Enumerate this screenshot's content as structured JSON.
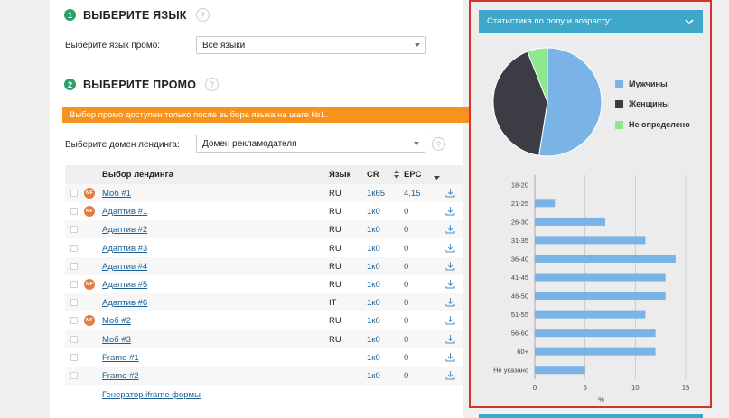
{
  "step1": {
    "num": "1",
    "title": "ВЫБЕРИТЕ ЯЗЫК",
    "help": "?",
    "lang_label": "Выберите язык промо:",
    "lang_value": "Все языки"
  },
  "step2": {
    "num": "2",
    "title": "ВЫБЕРИТЕ ПРОМО",
    "help": "?",
    "warning": "Выбор промо доступен только после выбора языка на шаге №1.",
    "domain_label": "Выберите домен лендинга:",
    "domain_value": "Домен рекламодателя"
  },
  "table": {
    "headers": {
      "landing": "Выбор лендинга",
      "lang": "Язык",
      "cr": "CR",
      "epc": "EPC"
    },
    "rows": [
      {
        "badge": "MF",
        "name": "Моб #1",
        "lang": "RU",
        "cr": "1к65",
        "epc": "4.15"
      },
      {
        "badge": "MF",
        "name": "Адаптив #1",
        "lang": "RU",
        "cr": "1к0",
        "epc": "0"
      },
      {
        "badge": "",
        "name": "Адаптив #2",
        "lang": "RU",
        "cr": "1к0",
        "epc": "0"
      },
      {
        "badge": "",
        "name": "Адаптив #3",
        "lang": "RU",
        "cr": "1к0",
        "epc": "0"
      },
      {
        "badge": "",
        "name": "Адаптив #4",
        "lang": "RU",
        "cr": "1к0",
        "epc": "0"
      },
      {
        "badge": "MF",
        "name": "Адаптив #5",
        "lang": "RU",
        "cr": "1к0",
        "epc": "0"
      },
      {
        "badge": "",
        "name": "Адаптив #6",
        "lang": "IT",
        "cr": "1к0",
        "epc": "0"
      },
      {
        "badge": "MF",
        "name": "Моб #2",
        "lang": "RU",
        "cr": "1к0",
        "epc": "0"
      },
      {
        "badge": "",
        "name": "Моб #3",
        "lang": "RU",
        "cr": "1к0",
        "epc": "0"
      },
      {
        "badge": "",
        "name": "Frame #1",
        "lang": "",
        "cr": "1к0",
        "epc": "0"
      },
      {
        "badge": "",
        "name": "Frame #2",
        "lang": "",
        "cr": "1к0",
        "epc": "0"
      }
    ],
    "iframe_link": "Генератор iframe формы"
  },
  "stats_panel": {
    "title": "Статистика по полу и возрасту:"
  },
  "colors": {
    "accent": "#3fa7c9",
    "warning": "#f7931d",
    "male": "#7ab3e6",
    "female": "#3c3c44",
    "unknown": "#8ee88e",
    "bar": "#7ab3e6",
    "highlight": "#d9312b"
  },
  "chart_data": [
    {
      "type": "pie",
      "labels": [
        "Мужчины",
        "Женщины",
        "Не определено"
      ],
      "values": [
        52.5,
        41.5,
        6
      ],
      "colors": [
        "#7ab3e6",
        "#3c3c44",
        "#8ee88e"
      ]
    },
    {
      "type": "bar",
      "orientation": "horizontal",
      "categories": [
        "18-20",
        "21-25",
        "26-30",
        "31-35",
        "36-40",
        "41-45",
        "46-50",
        "51-55",
        "56-60",
        "60+",
        "Не указано"
      ],
      "values": [
        0,
        2,
        7,
        11,
        14,
        13,
        13,
        11,
        12,
        12,
        5
      ],
      "xlabel": "%",
      "xticks": [
        "0",
        "5",
        "10",
        "15"
      ],
      "xlim": [
        0,
        15
      ],
      "grid": true
    }
  ]
}
